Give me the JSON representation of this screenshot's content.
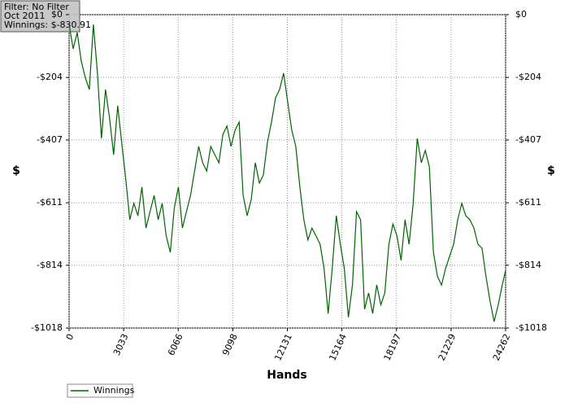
{
  "chart_data": {
    "type": "line",
    "info": [
      "Filter: No Filter",
      "Oct 2011",
      "Winnings: $-830.91"
    ],
    "xlabel": "Hands",
    "ylabel": "$",
    "y2label": "$",
    "x": [
      0,
      225,
      450,
      675,
      900,
      1125,
      1350,
      1575,
      1800,
      2025,
      2250,
      2475,
      2700,
      2925,
      3150,
      3375,
      3600,
      3825,
      4050,
      4275,
      4500,
      4725,
      4950,
      5175,
      5400,
      5625,
      5850,
      6075,
      6300,
      6525,
      6750,
      6975,
      7200,
      7425,
      7650,
      7875,
      8100,
      8325,
      8550,
      8775,
      9000,
      9225,
      9450,
      9675,
      9900,
      10125,
      10350,
      10575,
      10800,
      11025,
      11250,
      11475,
      11700,
      11925,
      12150,
      12375,
      12600,
      12825,
      13050,
      13275,
      13500,
      13725,
      13950,
      14175,
      14400,
      14625,
      14850,
      15075,
      15300,
      15525,
      15750,
      15975,
      16200,
      16425,
      16650,
      16875,
      17100,
      17325,
      17550,
      17775,
      18000,
      18225,
      18450,
      18675,
      18900,
      19125,
      19350,
      19575,
      19800,
      20025,
      20250,
      20475,
      20700,
      20925,
      21150,
      21375,
      21600,
      21825,
      22050,
      22275,
      22500,
      22725,
      22950,
      23175,
      23400,
      23625,
      23850,
      24075,
      24262
    ],
    "series": [
      {
        "name": "Winnings",
        "color": "#006400",
        "values": [
          -32,
          -111,
          -58,
          -150,
          -204,
          -243,
          -32,
          -190,
          -402,
          -243,
          -336,
          -455,
          -296,
          -415,
          -534,
          -666,
          -613,
          -653,
          -560,
          -693,
          -640,
          -587,
          -666,
          -613,
          -719,
          -772,
          -627,
          -560,
          -693,
          -640,
          -587,
          -508,
          -428,
          -481,
          -508,
          -428,
          -455,
          -481,
          -389,
          -362,
          -428,
          -375,
          -349,
          -587,
          -653,
          -600,
          -481,
          -547,
          -521,
          -415,
          -349,
          -270,
          -243,
          -190,
          -283,
          -375,
          -428,
          -560,
          -666,
          -732,
          -693,
          -719,
          -746,
          -825,
          -971,
          -825,
          -653,
          -746,
          -825,
          -983,
          -878,
          -640,
          -666,
          -957,
          -904,
          -971,
          -878,
          -943,
          -904,
          -746,
          -680,
          -719,
          -798,
          -666,
          -746,
          -613,
          -402,
          -481,
          -441,
          -494,
          -772,
          -851,
          -878,
          -825,
          -785,
          -746,
          -666,
          -613,
          -653,
          -666,
          -693,
          -746,
          -759,
          -851,
          -931,
          -997,
          -943,
          -878,
          -831
        ]
      }
    ],
    "xlim": [
      0,
      24262
    ],
    "xticks": [
      0,
      3033,
      6066,
      9098,
      12131,
      15164,
      18197,
      21229,
      24262
    ],
    "ylim": [
      -1018,
      0
    ],
    "yticks": [
      {
        "value": 0,
        "label": "$0"
      },
      {
        "value": -204,
        "label": "-$204"
      },
      {
        "value": -407,
        "label": "-$407"
      },
      {
        "value": -611,
        "label": "-$611"
      },
      {
        "value": -814,
        "label": "-$814"
      },
      {
        "value": -1018,
        "label": "-$1018"
      }
    ],
    "grid": true,
    "legend": "bottom-left"
  }
}
